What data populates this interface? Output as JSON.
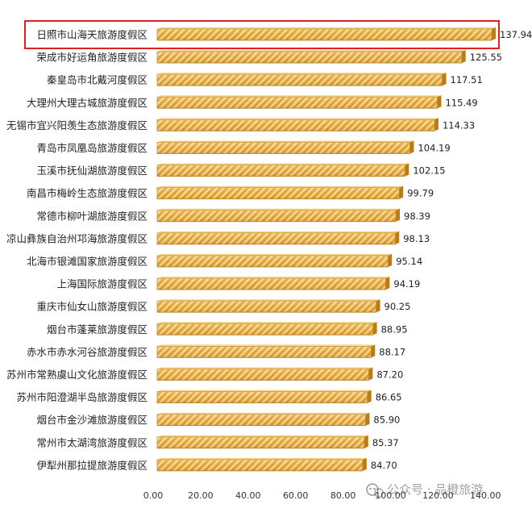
{
  "chart_data": {
    "type": "bar",
    "orientation": "horizontal",
    "categories": [
      "日照市山海天旅游度假区",
      "荣成市好运角旅游度假区",
      "秦皇岛市北戴河度假区",
      "大理州大理古城旅游度假区",
      "无锡市宜兴阳羡生态旅游度假区",
      "青岛市凤凰岛旅游度假区",
      "玉溪市抚仙湖旅游度假区",
      "南昌市梅岭生态旅游度假区",
      "常德市柳叶湖旅游度假区",
      "凉山彝族自治州邛海旅游度假区",
      "北海市银滩国家旅游度假区",
      "上海国际旅游度假区",
      "重庆市仙女山旅游度假区",
      "烟台市蓬莱旅游度假区",
      "赤水市赤水河谷旅游度假区",
      "苏州市常熟虞山文化旅游度假区",
      "苏州市阳澄湖半岛旅游度假区",
      "烟台市金沙滩旅游度假区",
      "常州市太湖湾旅游度假区",
      "伊犁州那拉提旅游度假区"
    ],
    "values": [
      137.94,
      125.55,
      117.51,
      115.49,
      114.33,
      104.19,
      102.15,
      99.79,
      98.39,
      98.13,
      95.14,
      94.19,
      90.25,
      88.95,
      88.17,
      87.2,
      86.65,
      85.9,
      85.37,
      84.7
    ],
    "value_labels": [
      "137.94",
      "125.55",
      "117.51",
      "115.49",
      "114.33",
      "104.19",
      "102.15",
      "99.79",
      "98.39",
      "98.13",
      "95.14",
      "94.19",
      "90.25",
      "88.95",
      "88.17",
      "87.20",
      "86.65",
      "85.90",
      "85.37",
      "84.70"
    ],
    "xticks": [
      "0.00",
      "20.00",
      "40.00",
      "60.00",
      "80.00",
      "100.00",
      "120.00",
      "140.00"
    ],
    "xlim": [
      0,
      140
    ],
    "highlighted_category": "日照市山海天旅游度假区",
    "highlight_color": "#e02020",
    "bar_color": "#e0a030",
    "bar_stripe_color": "#f6d58c",
    "grid": false,
    "legend": "none"
  },
  "watermark": {
    "icon": "wechat-icon",
    "text": "公众号 · 品橙旅游"
  }
}
